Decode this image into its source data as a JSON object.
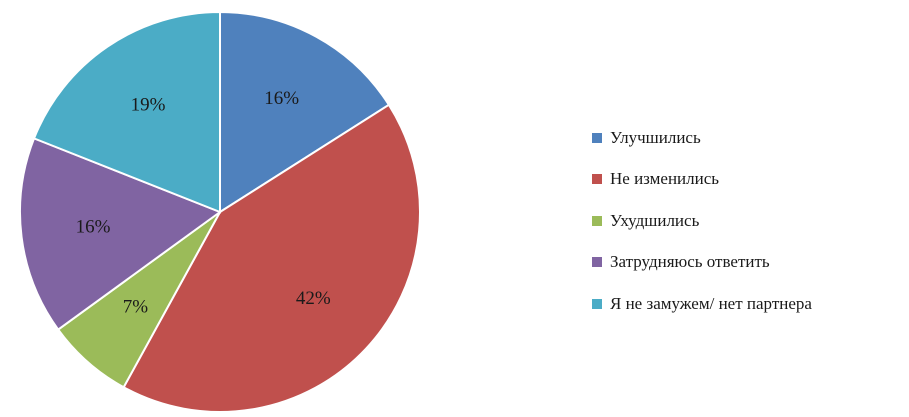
{
  "chart_data": {
    "type": "pie",
    "categories": [
      "Улучшились",
      "Не изменились",
      "Ухудшились",
      "Затрудняюсь ответить",
      "Я не замужем/ нет партнера"
    ],
    "values": [
      16,
      42,
      7,
      16,
      19
    ],
    "labels": [
      "16%",
      "42%",
      "7%",
      "16%",
      "19%"
    ],
    "colors": [
      "#4F81BD",
      "#C0504D",
      "#9BBB59",
      "#8064A2",
      "#4BACC6"
    ],
    "legend_position": "right",
    "start_angle": "12 o'clock, clockwise"
  }
}
